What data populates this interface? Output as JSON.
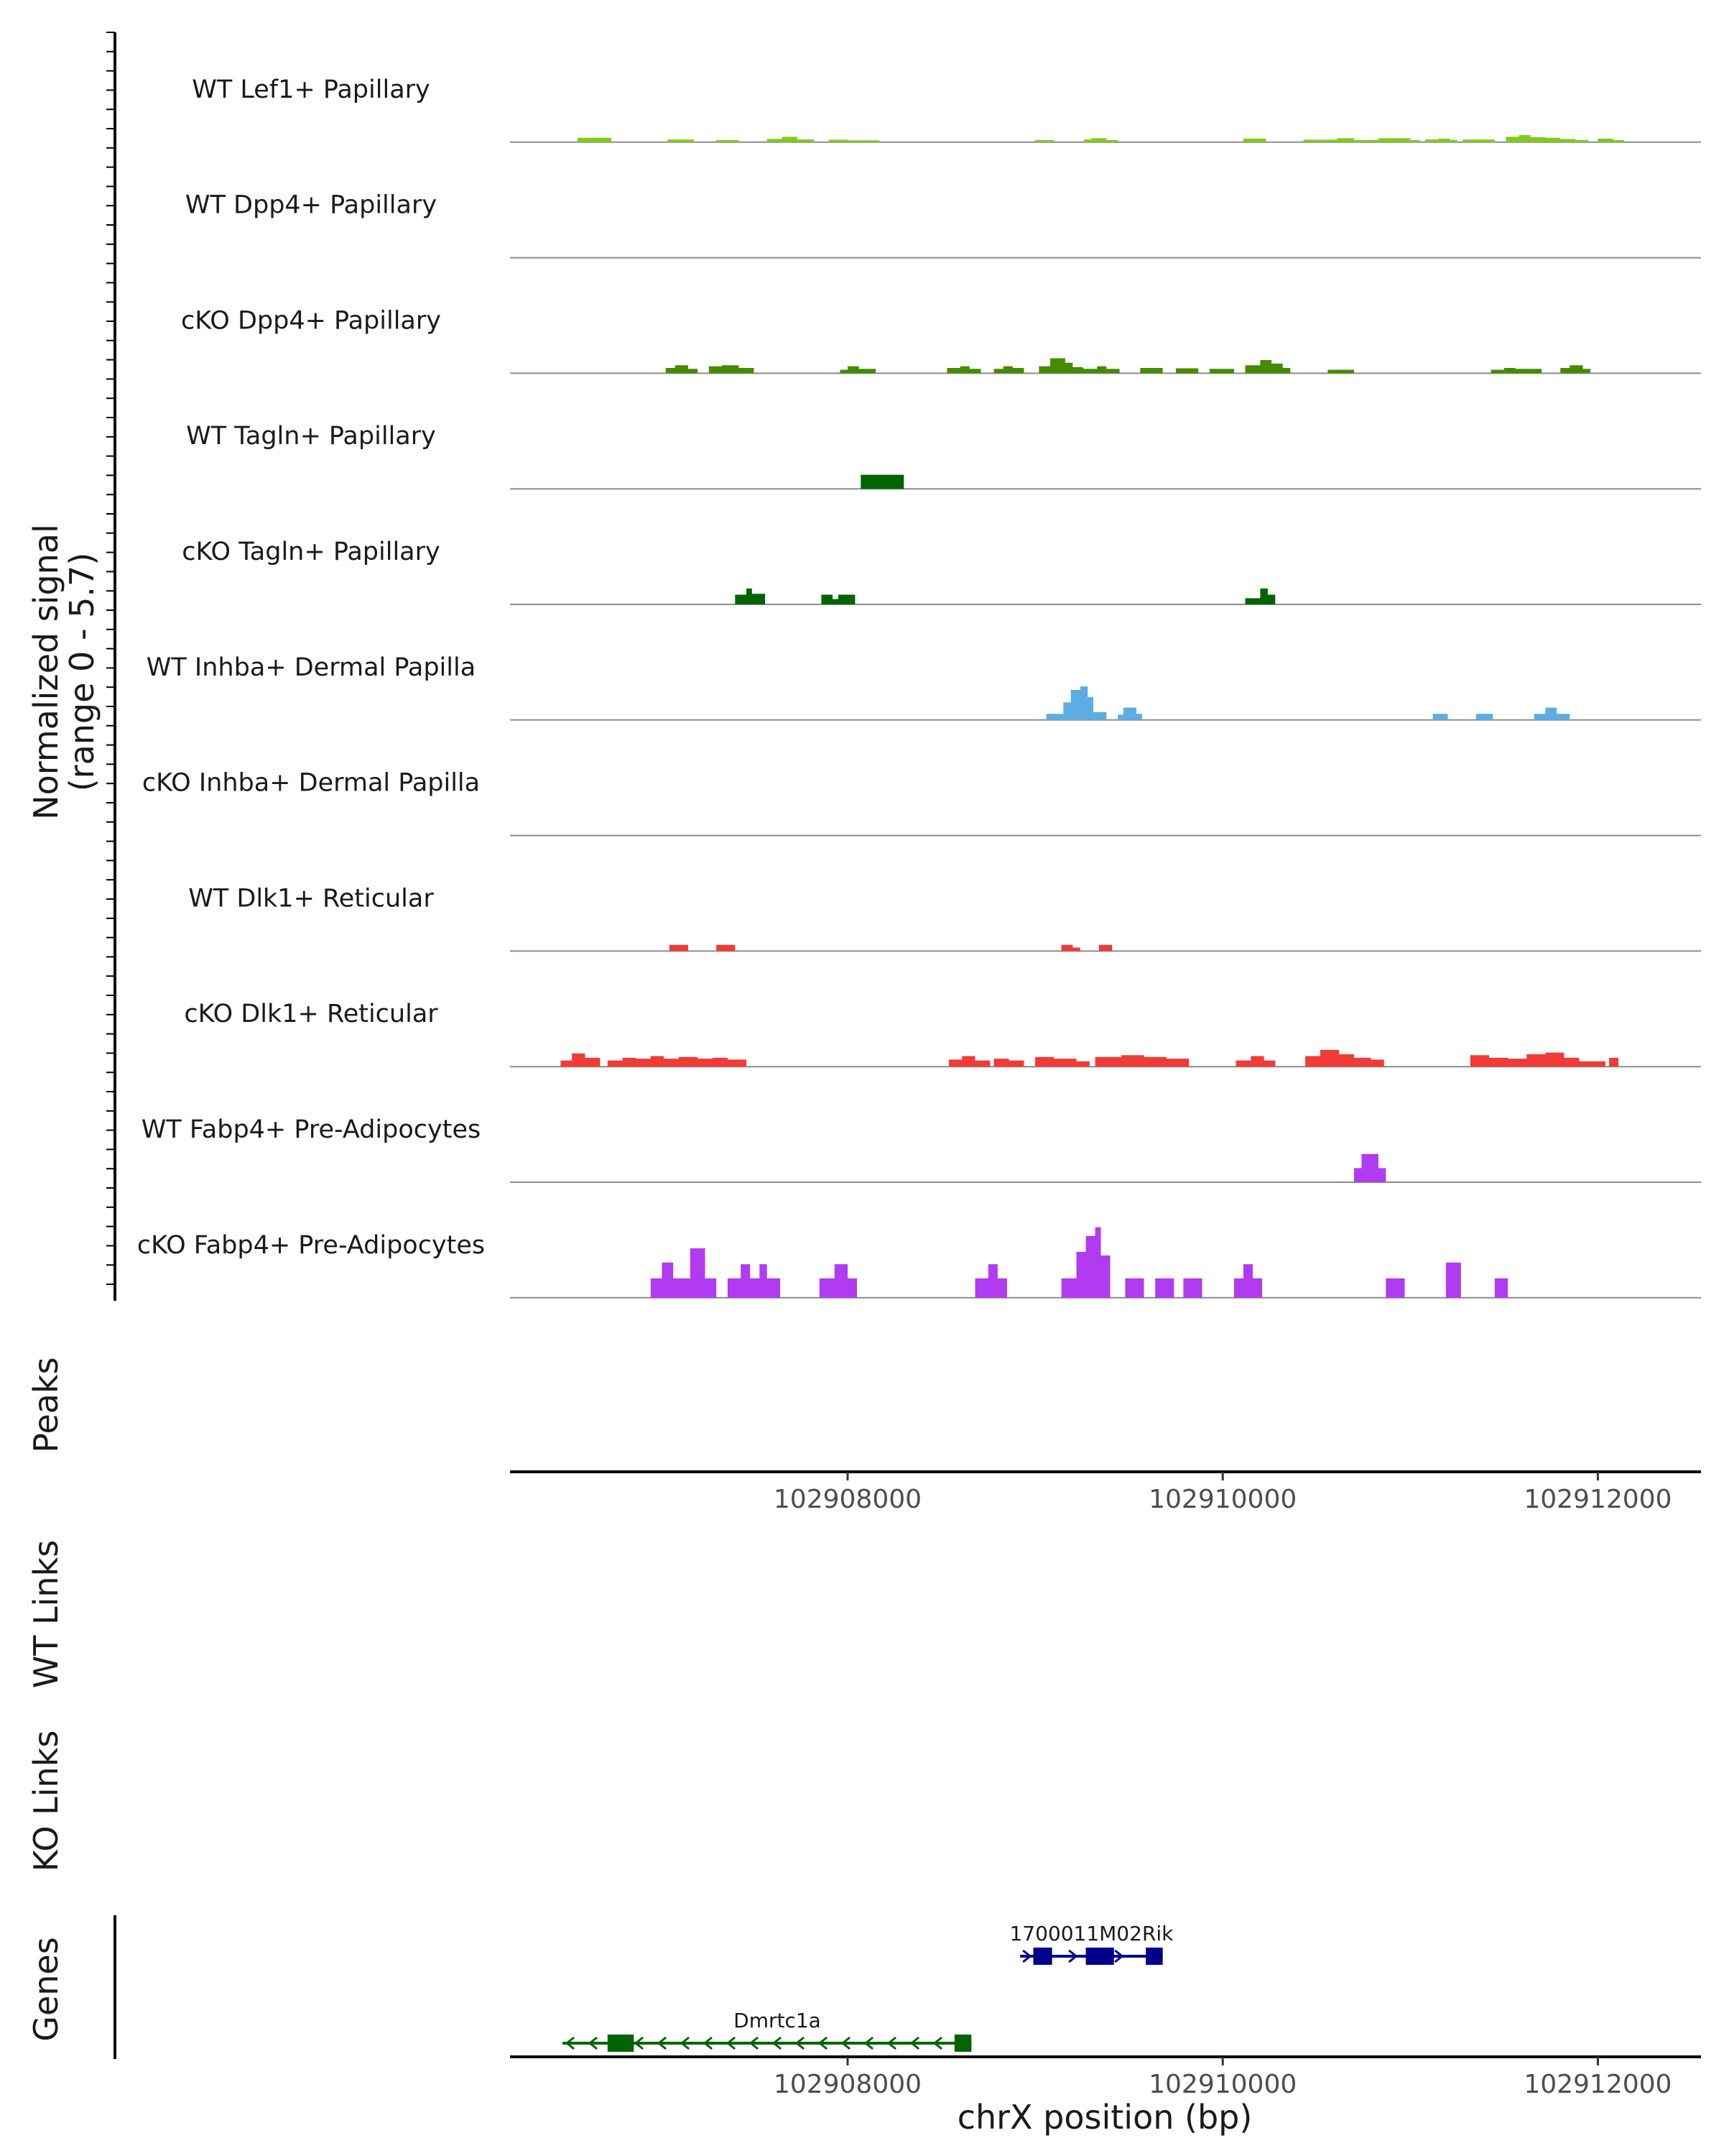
{
  "chart_data": {
    "type": "area",
    "title": "",
    "ylabel": [
      "Normalized signal",
      "(range 0 - 5.7)"
    ],
    "xlabel": "chrX position (bp)",
    "x_range": [
      102906200,
      102912550
    ],
    "x_ticks": [
      102908000,
      102910000,
      102912000
    ],
    "y_range": [
      0,
      5.7
    ],
    "tracks": [
      {
        "name": "WT Lef1+ Papillary",
        "color": "#7CCD18",
        "segments": [
          [
            102906560,
            102906740,
            0.25
          ],
          [
            102907040,
            102907180,
            0.15
          ],
          [
            102907300,
            102907420,
            0.12
          ],
          [
            102907570,
            102907650,
            0.18
          ],
          [
            102907650,
            102907730,
            0.3
          ],
          [
            102907730,
            102907820,
            0.15
          ],
          [
            102907900,
            102908000,
            0.14
          ],
          [
            102908000,
            102908170,
            0.1
          ],
          [
            102909000,
            102909100,
            0.12
          ],
          [
            102909260,
            102909300,
            0.15
          ],
          [
            102909300,
            102909380,
            0.22
          ],
          [
            102909380,
            102909440,
            0.12
          ],
          [
            102910110,
            102910230,
            0.2
          ],
          [
            102910430,
            102910610,
            0.14
          ],
          [
            102910610,
            102910700,
            0.22
          ],
          [
            102910700,
            102910830,
            0.12
          ],
          [
            102910830,
            102911000,
            0.22
          ],
          [
            102911000,
            102911050,
            0.12
          ],
          [
            102911080,
            102911150,
            0.15
          ],
          [
            102911150,
            102911210,
            0.2
          ],
          [
            102911210,
            102911250,
            0.12
          ],
          [
            102911280,
            102911450,
            0.15
          ],
          [
            102911510,
            102911580,
            0.3
          ],
          [
            102911580,
            102911640,
            0.4
          ],
          [
            102911640,
            102911720,
            0.28
          ],
          [
            102911720,
            102911800,
            0.25
          ],
          [
            102911800,
            102911880,
            0.18
          ],
          [
            102911880,
            102911950,
            0.12
          ],
          [
            102912000,
            102912080,
            0.2
          ],
          [
            102912080,
            102912140,
            0.12
          ]
        ]
      },
      {
        "name": "WT Dpp4+ Papillary",
        "color": "#8ACD2C",
        "segments": []
      },
      {
        "name": "cKO Dpp4+ Papillary",
        "color": "#458B00",
        "segments": [
          [
            102907030,
            102907080,
            0.3
          ],
          [
            102907080,
            102907150,
            0.45
          ],
          [
            102907150,
            102907200,
            0.25
          ],
          [
            102907260,
            102907330,
            0.4
          ],
          [
            102907330,
            102907420,
            0.45
          ],
          [
            102907420,
            102907500,
            0.3
          ],
          [
            102907960,
            102908000,
            0.2
          ],
          [
            102908000,
            102908060,
            0.4
          ],
          [
            102908060,
            102908150,
            0.25
          ],
          [
            102908530,
            102908600,
            0.3
          ],
          [
            102908600,
            102908650,
            0.4
          ],
          [
            102908650,
            102908710,
            0.25
          ],
          [
            102908780,
            102908830,
            0.25
          ],
          [
            102908830,
            102908880,
            0.4
          ],
          [
            102908880,
            102908940,
            0.3
          ],
          [
            102909020,
            102909080,
            0.4
          ],
          [
            102909080,
            102909160,
            0.85
          ],
          [
            102909160,
            102909200,
            0.6
          ],
          [
            102909200,
            102909250,
            0.35
          ],
          [
            102909260,
            102909330,
            0.25
          ],
          [
            102909330,
            102909380,
            0.4
          ],
          [
            102909380,
            102909450,
            0.25
          ],
          [
            102909560,
            102909680,
            0.3
          ],
          [
            102909750,
            102909870,
            0.28
          ],
          [
            102909930,
            102910060,
            0.25
          ],
          [
            102910120,
            102910200,
            0.45
          ],
          [
            102910200,
            102910260,
            0.75
          ],
          [
            102910260,
            102910320,
            0.55
          ],
          [
            102910320,
            102910360,
            0.3
          ],
          [
            102910560,
            102910700,
            0.2
          ],
          [
            102911430,
            102911500,
            0.2
          ],
          [
            102911500,
            102911560,
            0.3
          ],
          [
            102911560,
            102911700,
            0.25
          ],
          [
            102911800,
            102911850,
            0.3
          ],
          [
            102911850,
            102911920,
            0.45
          ],
          [
            102911920,
            102911960,
            0.25
          ]
        ]
      },
      {
        "name": "WT Tagln+ Papillary",
        "color": "#006400",
        "segments": [
          [
            102908070,
            102908300,
            0.8
          ]
        ]
      },
      {
        "name": "cKO Tagln+ Papillary",
        "color": "#006400",
        "segments": [
          [
            102907400,
            102907460,
            0.55
          ],
          [
            102907460,
            102907490,
            0.9
          ],
          [
            102907490,
            102907560,
            0.6
          ],
          [
            102907860,
            102907920,
            0.55
          ],
          [
            102907920,
            102907950,
            0.3
          ],
          [
            102907950,
            102908040,
            0.55
          ],
          [
            102910120,
            102910200,
            0.35
          ],
          [
            102910200,
            102910240,
            0.9
          ],
          [
            102910240,
            102910280,
            0.55
          ]
        ]
      },
      {
        "name": "WT Inhba+ Dermal Papilla",
        "color": "#5DADE2",
        "segments": [
          [
            102909060,
            102909150,
            0.35
          ],
          [
            102909150,
            102909190,
            1.0
          ],
          [
            102909190,
            102909240,
            1.7
          ],
          [
            102909240,
            102909280,
            1.9
          ],
          [
            102909280,
            102909310,
            1.3
          ],
          [
            102909310,
            102909380,
            0.45
          ],
          [
            102909440,
            102909470,
            0.3
          ],
          [
            102909470,
            102909540,
            0.7
          ],
          [
            102909540,
            102909570,
            0.35
          ],
          [
            102911120,
            102911200,
            0.35
          ],
          [
            102911350,
            102911440,
            0.35
          ],
          [
            102911660,
            102911720,
            0.35
          ],
          [
            102911720,
            102911780,
            0.7
          ],
          [
            102911780,
            102911850,
            0.35
          ]
        ]
      },
      {
        "name": "cKO Inhba+ Dermal Papilla",
        "color": "#5DADE2",
        "segments": []
      },
      {
        "name": "WT Dlk1+ Reticular",
        "color": "#F03B36",
        "segments": [
          [
            102907050,
            102907150,
            0.35
          ],
          [
            102907300,
            102907400,
            0.35
          ],
          [
            102909140,
            102909200,
            0.35
          ],
          [
            102909200,
            102909240,
            0.2
          ],
          [
            102909340,
            102909410,
            0.35
          ]
        ]
      },
      {
        "name": "cKO Dlk1+ Reticular",
        "color": "#F03B36",
        "segments": [
          [
            102906470,
            102906530,
            0.35
          ],
          [
            102906530,
            102906600,
            0.75
          ],
          [
            102906600,
            102906680,
            0.5
          ],
          [
            102906720,
            102906800,
            0.35
          ],
          [
            102906800,
            102906870,
            0.5
          ],
          [
            102906870,
            102906950,
            0.45
          ],
          [
            102906950,
            102907020,
            0.6
          ],
          [
            102907020,
            102907100,
            0.45
          ],
          [
            102907100,
            102907200,
            0.55
          ],
          [
            102907200,
            102907280,
            0.45
          ],
          [
            102907280,
            102907360,
            0.5
          ],
          [
            102907360,
            102907460,
            0.4
          ],
          [
            102908540,
            102908610,
            0.4
          ],
          [
            102908610,
            102908680,
            0.6
          ],
          [
            102908680,
            102908760,
            0.35
          ],
          [
            102908780,
            102908860,
            0.45
          ],
          [
            102908860,
            102908940,
            0.35
          ],
          [
            102909000,
            102909100,
            0.55
          ],
          [
            102909100,
            102909220,
            0.45
          ],
          [
            102909220,
            102909290,
            0.3
          ],
          [
            102909320,
            102909460,
            0.55
          ],
          [
            102909460,
            102909580,
            0.65
          ],
          [
            102909580,
            102909700,
            0.55
          ],
          [
            102909700,
            102909820,
            0.45
          ],
          [
            102910070,
            102910150,
            0.35
          ],
          [
            102910150,
            102910220,
            0.6
          ],
          [
            102910220,
            102910280,
            0.35
          ],
          [
            102910440,
            102910520,
            0.6
          ],
          [
            102910520,
            102910620,
            0.95
          ],
          [
            102910620,
            102910700,
            0.7
          ],
          [
            102910700,
            102910790,
            0.5
          ],
          [
            102910790,
            102910860,
            0.4
          ],
          [
            102911320,
            102911420,
            0.65
          ],
          [
            102911420,
            102911520,
            0.5
          ],
          [
            102911520,
            102911620,
            0.45
          ],
          [
            102911620,
            102911720,
            0.7
          ],
          [
            102911720,
            102911820,
            0.8
          ],
          [
            102911820,
            102911900,
            0.5
          ],
          [
            102911900,
            102912040,
            0.3
          ],
          [
            102912060,
            102912110,
            0.5
          ]
        ]
      },
      {
        "name": "WT Fabp4+ Pre-Adipocytes",
        "color": "#B13BF0",
        "segments": [
          [
            102910700,
            102910740,
            0.8
          ],
          [
            102910740,
            102910830,
            1.6
          ],
          [
            102910830,
            102910870,
            0.8
          ]
        ]
      },
      {
        "name": "cKO Fabp4+ Pre-Adipocytes",
        "color": "#B13BF0",
        "segments": [
          [
            102906950,
            102907010,
            1.1
          ],
          [
            102907010,
            102907070,
            2.0
          ],
          [
            102907070,
            102907160,
            1.1
          ],
          [
            102907160,
            102907240,
            2.8
          ],
          [
            102907240,
            102907300,
            1.1
          ],
          [
            102907360,
            102907430,
            1.1
          ],
          [
            102907430,
            102907480,
            1.9
          ],
          [
            102907480,
            102907530,
            1.1
          ],
          [
            102907530,
            102907570,
            1.9
          ],
          [
            102907570,
            102907640,
            1.1
          ],
          [
            102907850,
            102907930,
            1.1
          ],
          [
            102907930,
            102908000,
            1.9
          ],
          [
            102908000,
            102908050,
            1.1
          ],
          [
            102908680,
            102908750,
            1.1
          ],
          [
            102908750,
            102908800,
            1.9
          ],
          [
            102908800,
            102908850,
            1.1
          ],
          [
            102909140,
            102909220,
            1.1
          ],
          [
            102909220,
            102909270,
            2.6
          ],
          [
            102909270,
            102909320,
            3.5
          ],
          [
            102909320,
            102909350,
            4.0
          ],
          [
            102909350,
            102909400,
            2.4
          ],
          [
            102909480,
            102909580,
            1.1
          ],
          [
            102909640,
            102909740,
            1.1
          ],
          [
            102909790,
            102909890,
            1.1
          ],
          [
            102910060,
            102910110,
            1.1
          ],
          [
            102910110,
            102910160,
            1.9
          ],
          [
            102910160,
            102910210,
            1.1
          ],
          [
            102910870,
            102910970,
            1.1
          ],
          [
            102911190,
            102911270,
            2.0
          ],
          [
            102911450,
            102911520,
            1.1
          ]
        ]
      }
    ],
    "side_titles": [
      "Peaks",
      "WT Links",
      "KO Links",
      "Genes"
    ],
    "genes": [
      {
        "name": "1700011M02Rik",
        "strand": "+",
        "color": "#00008B",
        "start": 102908920,
        "end": 102909680,
        "exons": [
          [
            102908990,
            102909090
          ],
          [
            102909270,
            102909420
          ],
          [
            102909590,
            102909680
          ]
        ]
      },
      {
        "name": "Dmrtc1a",
        "strand": "-",
        "color": "#006400",
        "start": 102906480,
        "end": 102908660,
        "exons": [
          [
            102906720,
            102906860
          ],
          [
            102908570,
            102908660
          ]
        ]
      }
    ]
  }
}
